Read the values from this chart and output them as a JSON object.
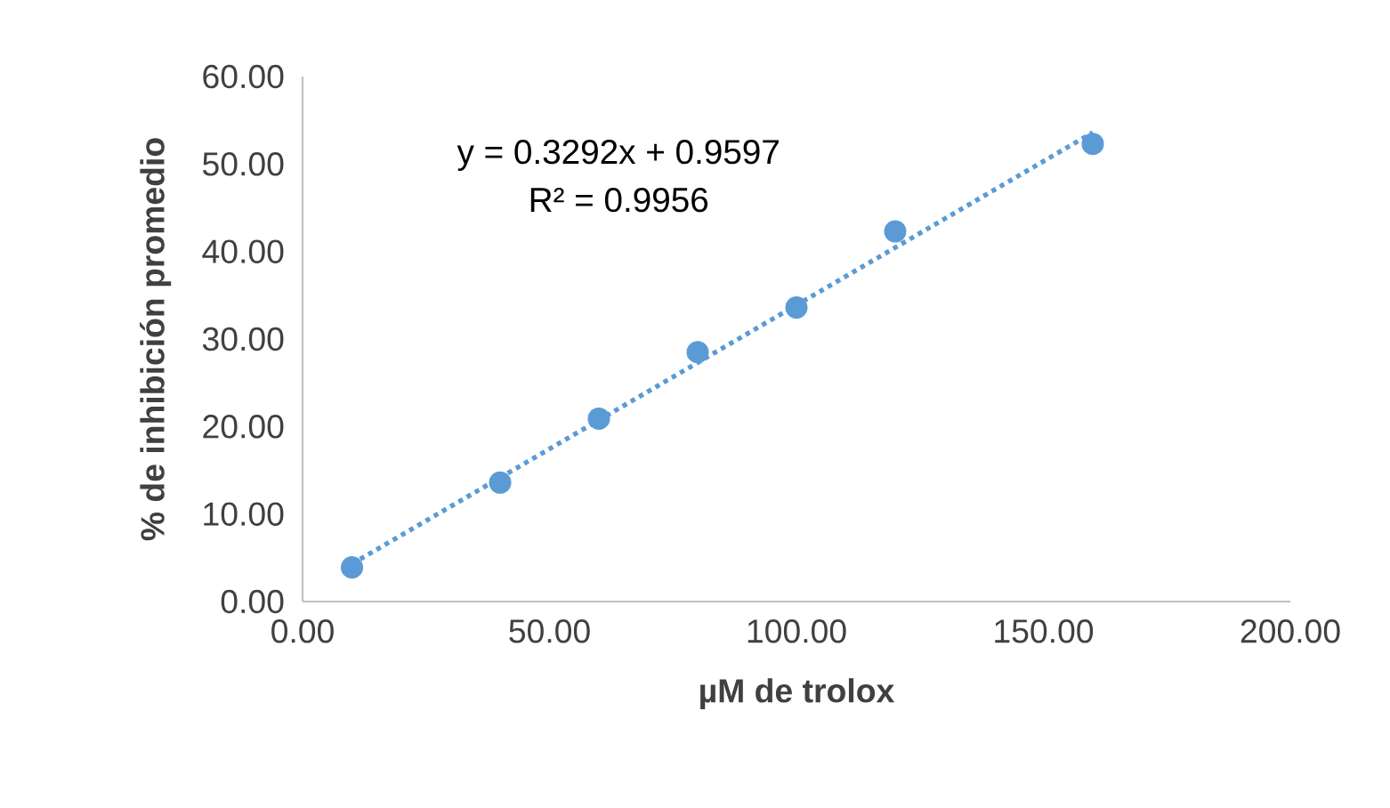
{
  "chart_data": {
    "type": "scatter",
    "xlabel": "µM de trolox",
    "ylabel": "% de inhibición promedio",
    "xlim": [
      0,
      200
    ],
    "ylim": [
      0,
      60
    ],
    "xticks": [
      {
        "value": 0,
        "label": "0.00"
      },
      {
        "value": 50,
        "label": "50.00"
      },
      {
        "value": 100,
        "label": "100.00"
      },
      {
        "value": 150,
        "label": "150.00"
      },
      {
        "value": 200,
        "label": "200.00"
      }
    ],
    "yticks": [
      {
        "value": 0,
        "label": "0.00"
      },
      {
        "value": 10,
        "label": "10.00"
      },
      {
        "value": 20,
        "label": "20.00"
      },
      {
        "value": 30,
        "label": "30.00"
      },
      {
        "value": 40,
        "label": "40.00"
      },
      {
        "value": 50,
        "label": "50.00"
      },
      {
        "value": 60,
        "label": "60.00"
      }
    ],
    "series": [
      {
        "color": "#5b9bd5",
        "x": [
          10,
          40,
          60,
          80,
          100,
          120,
          160
        ],
        "values": [
          3.9,
          13.6,
          20.9,
          28.5,
          33.6,
          42.3,
          52.3
        ]
      },
      {
        "type": "line",
        "color": "#5b9bd5",
        "marker": "none",
        "line_style": "dotted",
        "x": [
          10,
          160
        ],
        "values": [
          4.3,
          53.6
        ]
      }
    ],
    "annotations": [
      "y = 0.3292x + 0.9597",
      "R² = 0.9956"
    ],
    "marker": "circle",
    "grid": false
  }
}
